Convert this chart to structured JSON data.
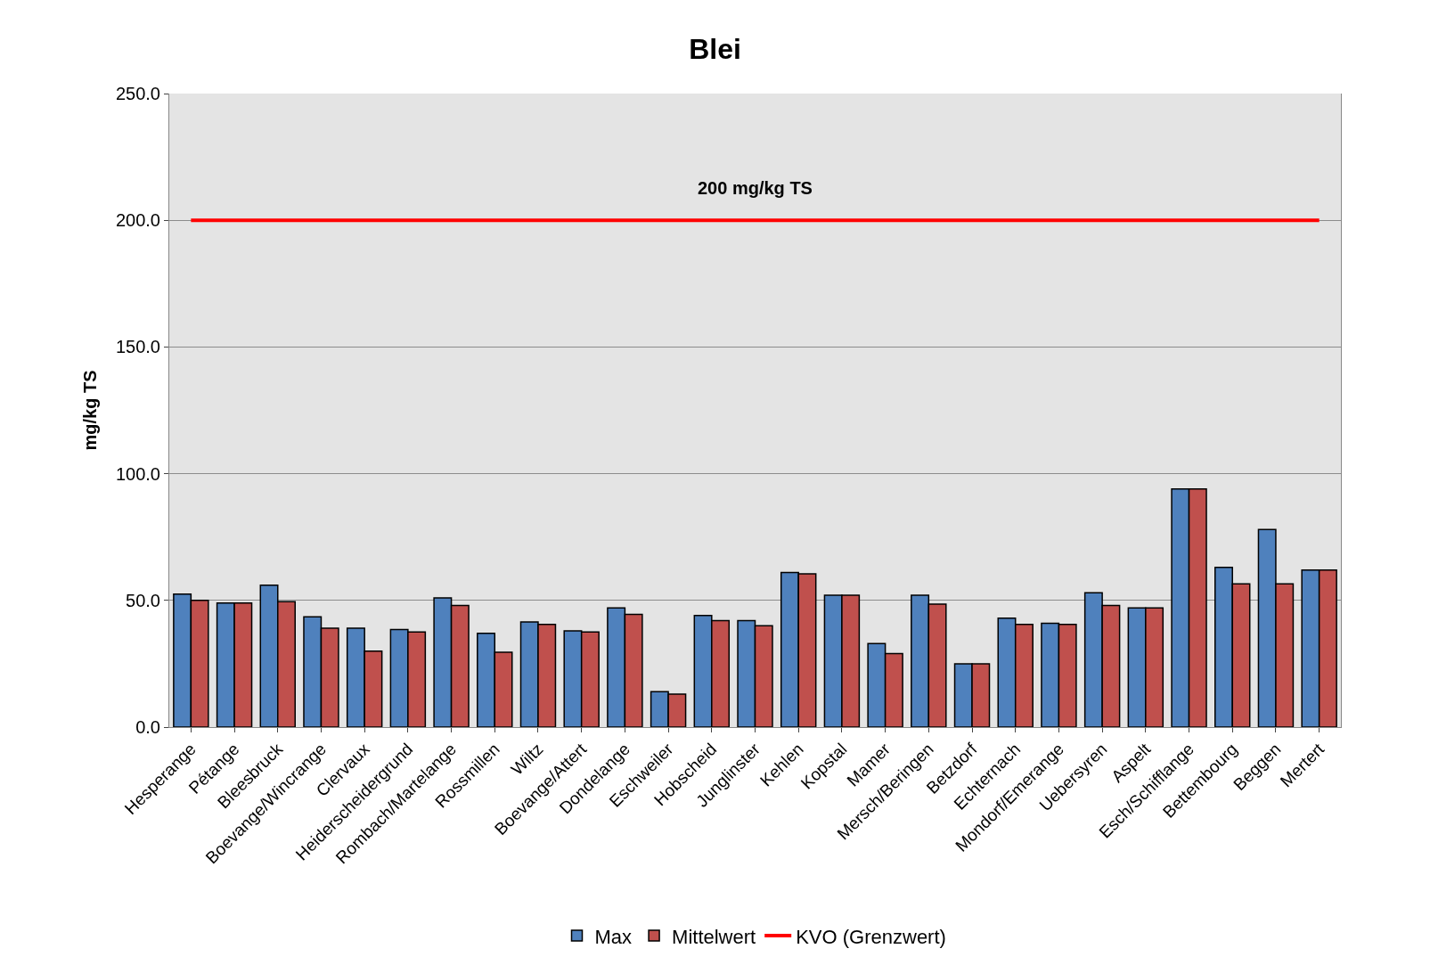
{
  "chart_data": {
    "type": "bar",
    "title": "Blei",
    "ylabel": "mg/kg TS",
    "categories": [
      "Hesperange",
      "Pétange",
      "Bleesbruck",
      "Boevange/Wincrange",
      "Clervaux",
      "Heiderscheidergrund",
      "Rombach/Martelange",
      "Rossmillen",
      "Wiltz",
      "Boevange/Attert",
      "Dondelange",
      "Eschweiler",
      "Hobscheid",
      "Junglinster",
      "Kehlen",
      "Kopstal",
      "Mamer",
      "Mersch/Beringen",
      "Betzdorf",
      "Echternach",
      "Mondorf/Emerange",
      "Uebersyren",
      "Aspelt",
      "Esch/Schifflange",
      "Bettembourg",
      "Beggen",
      "Mertert"
    ],
    "series": [
      {
        "name": "Max",
        "color": "#4f81bd",
        "values": [
          52.5,
          49,
          56,
          43.5,
          39,
          38.5,
          51,
          37,
          41.5,
          38,
          47,
          14,
          44,
          42,
          61,
          52,
          33,
          52,
          25,
          43,
          41,
          53,
          47,
          94,
          63,
          78,
          62
        ]
      },
      {
        "name": "Mittelwert",
        "color": "#c0504d",
        "values": [
          50,
          49,
          49.5,
          39,
          30,
          37.5,
          48,
          29.5,
          40.5,
          37.5,
          44.5,
          13,
          42,
          40,
          60.5,
          52,
          29,
          48.5,
          25,
          40.5,
          40.5,
          48,
          47,
          94,
          56.5,
          56.5,
          62
        ]
      },
      {
        "name": "KVO (Grenzwert)",
        "type": "line",
        "color": "#ff0000",
        "marker": "none",
        "values": [
          200,
          200,
          200,
          200,
          200,
          200,
          200,
          200,
          200,
          200,
          200,
          200,
          200,
          200,
          200,
          200,
          200,
          200,
          200,
          200,
          200,
          200,
          200,
          200,
          200,
          200,
          200
        ]
      }
    ],
    "annotations": [
      {
        "text": "200 mg/kg TS",
        "y": 200
      }
    ],
    "ylim": [
      0,
      250
    ],
    "yticks": [
      {
        "value": 0,
        "label": "0.0"
      },
      {
        "value": 50,
        "label": "50.0"
      },
      {
        "value": 100,
        "label": "100.0"
      },
      {
        "value": 150,
        "label": "150.0"
      },
      {
        "value": 200,
        "label": "200.0"
      },
      {
        "value": 250,
        "label": "250.0"
      }
    ],
    "grid": "y",
    "legend": "bottom"
  }
}
